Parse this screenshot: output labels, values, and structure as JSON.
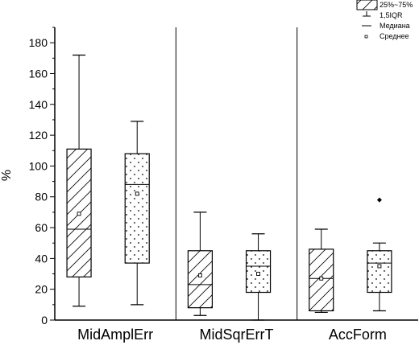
{
  "chart_data": {
    "type": "box",
    "ylabel": "%",
    "ylim": [
      0,
      190
    ],
    "yticks": [
      0,
      20,
      40,
      60,
      80,
      100,
      120,
      140,
      160,
      180
    ],
    "categories": [
      "MidAmplErr",
      "MidSqrErrT",
      "AccForm"
    ],
    "legend_position": "top-right",
    "legend": {
      "box": "25%~75%",
      "whisker": "1,5IQR",
      "median": "Медиана",
      "mean": "Среднее"
    },
    "boxes": [
      {
        "category": "MidAmplErr",
        "pattern": "hatch",
        "whisker_low": 9,
        "q1": 28,
        "median": 59,
        "q3": 111,
        "whisker_high": 172,
        "mean": 69,
        "outliers": []
      },
      {
        "category": "MidAmplErr",
        "pattern": "dots",
        "whisker_low": 10,
        "q1": 37,
        "median": 88,
        "q3": 108,
        "whisker_high": 129,
        "mean": 82,
        "outliers": []
      },
      {
        "category": "MidSqrErrT",
        "pattern": "hatch",
        "whisker_low": 3,
        "q1": 8,
        "median": 23,
        "q3": 45,
        "whisker_high": 70,
        "mean": 29,
        "outliers": []
      },
      {
        "category": "MidSqrErrT",
        "pattern": "dots",
        "whisker_low": 0,
        "q1": 18,
        "median": 35,
        "q3": 45,
        "whisker_high": 56,
        "mean": 30,
        "outliers": []
      },
      {
        "category": "AccForm",
        "pattern": "hatch",
        "whisker_low": 5,
        "q1": 6,
        "median": 27,
        "q3": 46,
        "whisker_high": 59,
        "mean": 27,
        "outliers": []
      },
      {
        "category": "AccForm",
        "pattern": "dots",
        "whisker_low": 6,
        "q1": 18,
        "median": 37,
        "q3": 45,
        "whisker_high": 50,
        "mean": 35,
        "outliers": [
          78
        ]
      }
    ]
  }
}
